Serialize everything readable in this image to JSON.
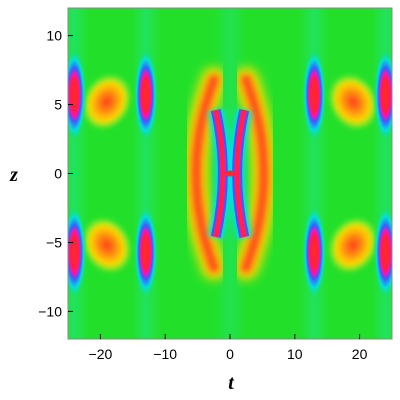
{
  "chart_data": {
    "type": "heatmap",
    "title": "",
    "xlabel": "t",
    "ylabel": "z",
    "xlim": [
      -25,
      25
    ],
    "ylim": [
      -12,
      12
    ],
    "x_ticks": [
      -20,
      -10,
      0,
      10,
      20
    ],
    "x_tick_labels": [
      "−20",
      "−10",
      "0",
      "10",
      "20"
    ],
    "y_ticks": [
      -10,
      -5,
      0,
      5,
      10
    ],
    "y_tick_labels": [
      "−10",
      "−5",
      "0",
      "5",
      "10"
    ],
    "colormap": [
      "#00ee00",
      "#ffff00",
      "#ff8c00",
      "#ff2020",
      "#ff00aa",
      "#3060ff",
      "#00e0e0"
    ],
    "background_color": "#22e02a",
    "grid": false,
    "legend": "none",
    "features": [
      {
        "name": "x-center",
        "x": 0,
        "y": 0
      },
      {
        "name": "spot-upper-left-outer",
        "x": -24,
        "y": 5.7
      },
      {
        "name": "spot-lower-left-outer",
        "x": -24,
        "y": -5.7
      },
      {
        "name": "spot-upper-left-inner",
        "x": -13,
        "y": 5.7
      },
      {
        "name": "spot-lower-left-inner",
        "x": -13,
        "y": -5.7
      },
      {
        "name": "spot-upper-right-inner",
        "x": 13,
        "y": 5.7
      },
      {
        "name": "spot-lower-right-inner",
        "x": 13,
        "y": -5.7
      },
      {
        "name": "spot-upper-right-outer",
        "x": 24,
        "y": 5.7
      },
      {
        "name": "spot-lower-right-outer",
        "x": 24,
        "y": -5.7
      },
      {
        "name": "blob-upper-left",
        "x": -19,
        "y": 5.2
      },
      {
        "name": "blob-lower-left",
        "x": -19,
        "y": -5.2
      },
      {
        "name": "blob-upper-right",
        "x": 19,
        "y": 5.2
      },
      {
        "name": "blob-lower-right",
        "x": 19,
        "y": -5.2
      },
      {
        "name": "arc-left",
        "x": -5.5,
        "y": 0
      },
      {
        "name": "arc-right",
        "x": 5.5,
        "y": 0
      }
    ]
  }
}
